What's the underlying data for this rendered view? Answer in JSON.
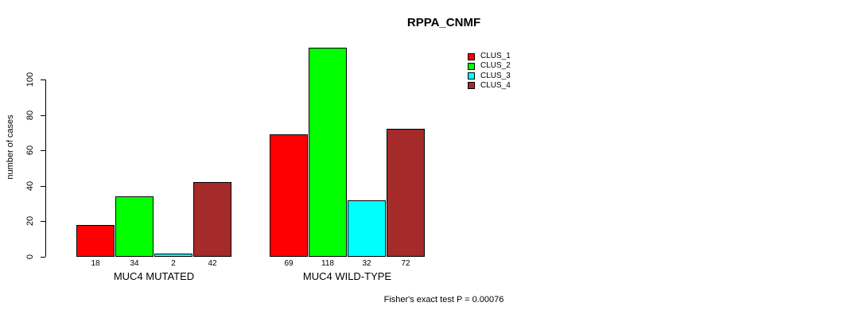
{
  "chart_data": {
    "type": "bar",
    "title": "RPPA_CNMF",
    "ylabel": "number of cases",
    "annotation": "Fisher's exact test P = 0.00076",
    "series": [
      "CLUS_1",
      "CLUS_2",
      "CLUS_3",
      "CLUS_4"
    ],
    "colors": [
      "#FF0000",
      "#00FF00",
      "#00FFFF",
      "#A52A2A"
    ],
    "groups": [
      {
        "label": "MUC4 MUTATED",
        "values": [
          18,
          34,
          2,
          42
        ]
      },
      {
        "label": "MUC4 WILD-TYPE",
        "values": [
          69,
          118,
          32,
          72
        ]
      }
    ],
    "yticks": [
      0,
      20,
      40,
      60,
      80,
      100
    ],
    "ylim": [
      0,
      100
    ],
    "grid": false,
    "legend_position": "top-right",
    "axis_color": "#000000",
    "background_color": "#FFFFFF"
  }
}
